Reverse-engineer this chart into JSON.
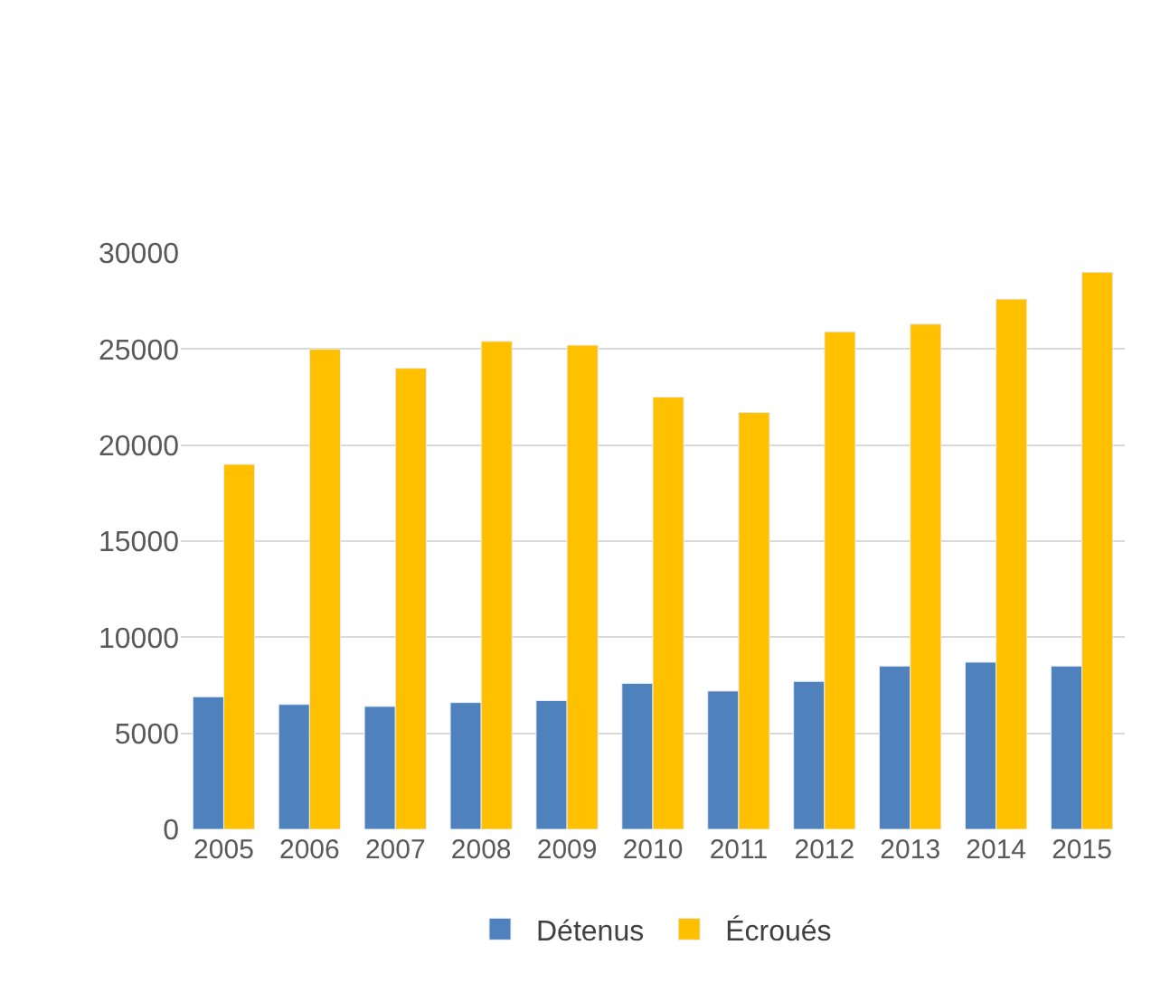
{
  "chart_data": {
    "type": "bar",
    "categories": [
      "2005",
      "2006",
      "2007",
      "2008",
      "2009",
      "2010",
      "2011",
      "2012",
      "2013",
      "2014",
      "2015"
    ],
    "series": [
      {
        "name": "Détenus",
        "color": "#4f81bd",
        "values": [
          6900,
          6500,
          6400,
          6600,
          6700,
          7600,
          7200,
          7700,
          8500,
          8700,
          8500
        ]
      },
      {
        "name": "Écroués",
        "color": "#ffc000",
        "values": [
          19000,
          25000,
          24000,
          25400,
          25200,
          22500,
          21700,
          25900,
          26300,
          27600,
          29000
        ]
      }
    ],
    "ylim": [
      0,
      30000
    ],
    "yticks": [
      0,
      5000,
      10000,
      15000,
      20000,
      25000,
      30000
    ],
    "grid": "y",
    "legend": "bottom"
  }
}
